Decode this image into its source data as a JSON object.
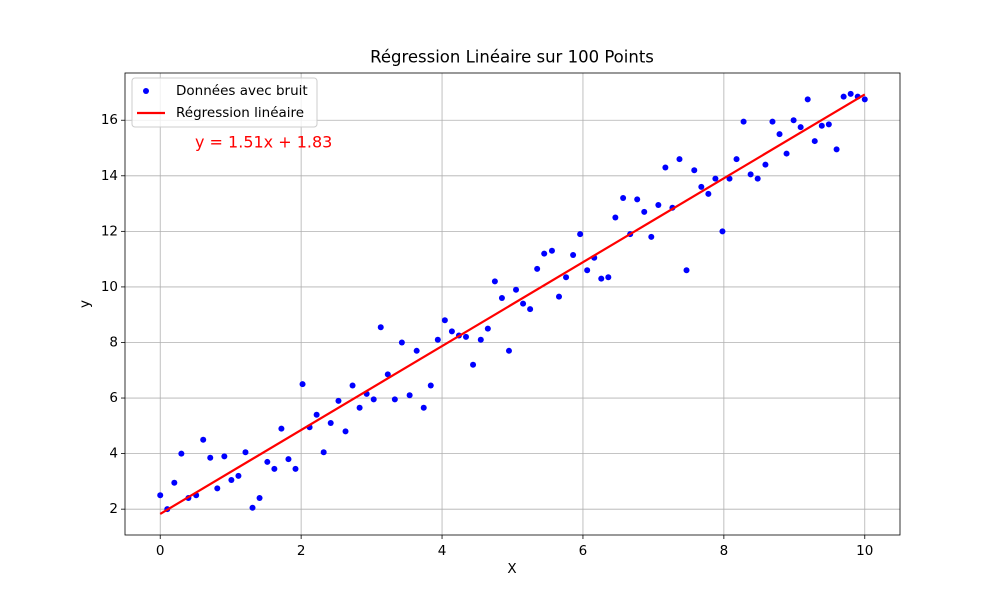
{
  "chart_data": {
    "type": "scatter",
    "title": "Régression Linéaire sur 100 Points",
    "xlabel": "X",
    "ylabel": "y",
    "annotation": "y = 1.51x + 1.83",
    "annotation_color": "red",
    "xlim": [
      -0.5,
      10.5
    ],
    "ylim": [
      1.07,
      17.7
    ],
    "xticks": [
      0,
      2,
      4,
      6,
      8,
      10
    ],
    "yticks": [
      2,
      4,
      6,
      8,
      10,
      12,
      14,
      16
    ],
    "grid": true,
    "legend": "upper left",
    "series": [
      {
        "name": "Données avec bruit",
        "type": "scatter",
        "color": "blue",
        "x": [
          0,
          0.1,
          0.2,
          0.3,
          0.4,
          0.51,
          0.61,
          0.71,
          0.81,
          0.91,
          1.01,
          1.11,
          1.21,
          1.31,
          1.41,
          1.52,
          1.62,
          1.72,
          1.82,
          1.92,
          2.02,
          2.12,
          2.22,
          2.32,
          2.42,
          2.53,
          2.63,
          2.73,
          2.83,
          2.93,
          3.03,
          3.13,
          3.23,
          3.33,
          3.43,
          3.54,
          3.64,
          3.74,
          3.84,
          3.94,
          4.04,
          4.14,
          4.24,
          4.34,
          4.44,
          4.55,
          4.65,
          4.75,
          4.85,
          4.95,
          5.05,
          5.15,
          5.25,
          5.35,
          5.45,
          5.56,
          5.66,
          5.76,
          5.86,
          5.96,
          6.06,
          6.16,
          6.26,
          6.36,
          6.46,
          6.57,
          6.67,
          6.77,
          6.87,
          6.97,
          7.07,
          7.17,
          7.27,
          7.37,
          7.47,
          7.58,
          7.68,
          7.78,
          7.88,
          7.98,
          8.08,
          8.18,
          8.28,
          8.38,
          8.48,
          8.59,
          8.69,
          8.79,
          8.89,
          8.99,
          9.09,
          9.19,
          9.29,
          9.39,
          9.49,
          9.6,
          9.7,
          9.8,
          9.9,
          10
        ],
        "values": [
          2.5,
          2.0,
          2.95,
          4.0,
          2.4,
          2.5,
          4.5,
          3.85,
          2.75,
          3.9,
          3.05,
          3.2,
          4.05,
          2.05,
          2.4,
          3.7,
          3.45,
          4.9,
          3.8,
          3.45,
          6.5,
          4.95,
          5.4,
          4.05,
          5.1,
          5.9,
          4.8,
          6.45,
          5.65,
          6.15,
          5.95,
          8.55,
          6.85,
          5.95,
          8.0,
          6.1,
          7.7,
          5.65,
          6.45,
          8.1,
          8.8,
          8.4,
          8.25,
          8.2,
          7.2,
          8.1,
          8.5,
          10.2,
          9.6,
          7.7,
          9.9,
          9.4,
          9.2,
          10.65,
          11.2,
          11.3,
          9.65,
          10.35,
          11.15,
          11.9,
          10.6,
          11.05,
          10.3,
          10.35,
          12.5,
          13.2,
          11.9,
          13.15,
          12.7,
          11.8,
          12.95,
          14.3,
          12.85,
          14.6,
          10.6,
          14.2,
          13.6,
          13.35,
          13.9,
          12.0,
          13.9,
          14.6,
          15.95,
          14.05,
          13.9,
          14.4,
          15.95,
          15.5,
          14.8,
          16.0,
          15.75,
          16.75,
          15.25,
          15.8,
          15.85,
          14.95,
          16.85,
          16.95,
          16.85,
          16.75
        ]
      },
      {
        "name": "Régression linéaire",
        "type": "line",
        "color": "red",
        "x": [
          0,
          10
        ],
        "values": [
          1.83,
          16.93
        ]
      }
    ]
  }
}
